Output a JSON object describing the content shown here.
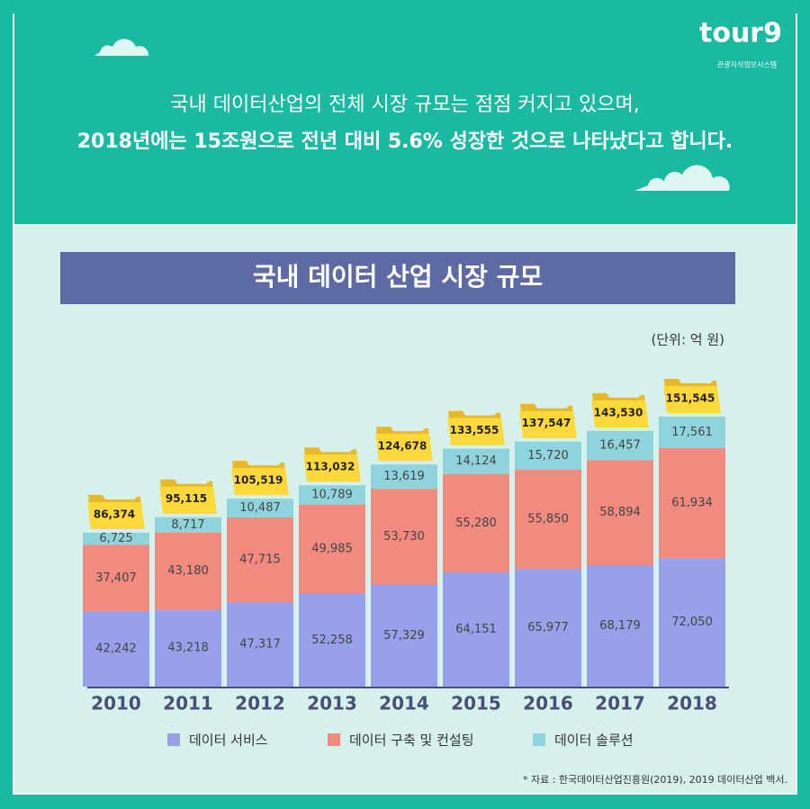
{
  "header": {
    "logo": "tour9",
    "logo_subtitle": "관광지식정보시스템",
    "line1": "국내 데이터산업의 전체 시장 규모는 점점 커지고 있으며,",
    "line2": "2018년에는 15조원으로 전년 대비 5.6% 성장한 것으로 나타났다고 합니다."
  },
  "chart_data": {
    "type": "stacked-bar",
    "title": "국내 데이터 산업 시장 규모",
    "unit": "(단위: 억 원)",
    "categories": [
      "2010",
      "2011",
      "2012",
      "2013",
      "2014",
      "2015",
      "2016",
      "2017",
      "2018"
    ],
    "series": [
      {
        "name": "데이터 서비스",
        "color": "#97a0e8",
        "values": [
          42242,
          43218,
          47317,
          52258,
          57329,
          64151,
          65977,
          68179,
          72050
        ],
        "value_labels": [
          "42,242",
          "43,218",
          "47,317",
          "52,258",
          "57,329",
          "64,151",
          "65,977",
          "68,179",
          "72,050"
        ]
      },
      {
        "name": "데이터 구축 및 컨설팅",
        "color": "#f28a80",
        "values": [
          37407,
          43180,
          47715,
          49985,
          53730,
          55280,
          55850,
          58894,
          61934
        ],
        "value_labels": [
          "37,407",
          "43,180",
          "47,715",
          "49,985",
          "53,730",
          "55,280",
          "55,850",
          "58,894",
          "61,934"
        ]
      },
      {
        "name": "데이터 솔루션",
        "color": "#8fd4dc",
        "values": [
          6725,
          8717,
          10487,
          10789,
          13619,
          14124,
          15720,
          16457,
          17561
        ],
        "value_labels": [
          "6,725",
          "8,717",
          "10,487",
          "10,789",
          "13,619",
          "14,124",
          "15,720",
          "16,457",
          "17,561"
        ]
      }
    ],
    "totals": {
      "values": [
        86374,
        95115,
        105519,
        113032,
        124678,
        133555,
        137547,
        143530,
        151545
      ],
      "value_labels": [
        "86,374",
        "95,115",
        "105,519",
        "113,032",
        "124,678",
        "133,555",
        "137,547",
        "143,530",
        "151,545"
      ]
    },
    "source": "* 자료 : 한국데이터산업진흥원(2019), 2019 데이터산업 백서."
  }
}
